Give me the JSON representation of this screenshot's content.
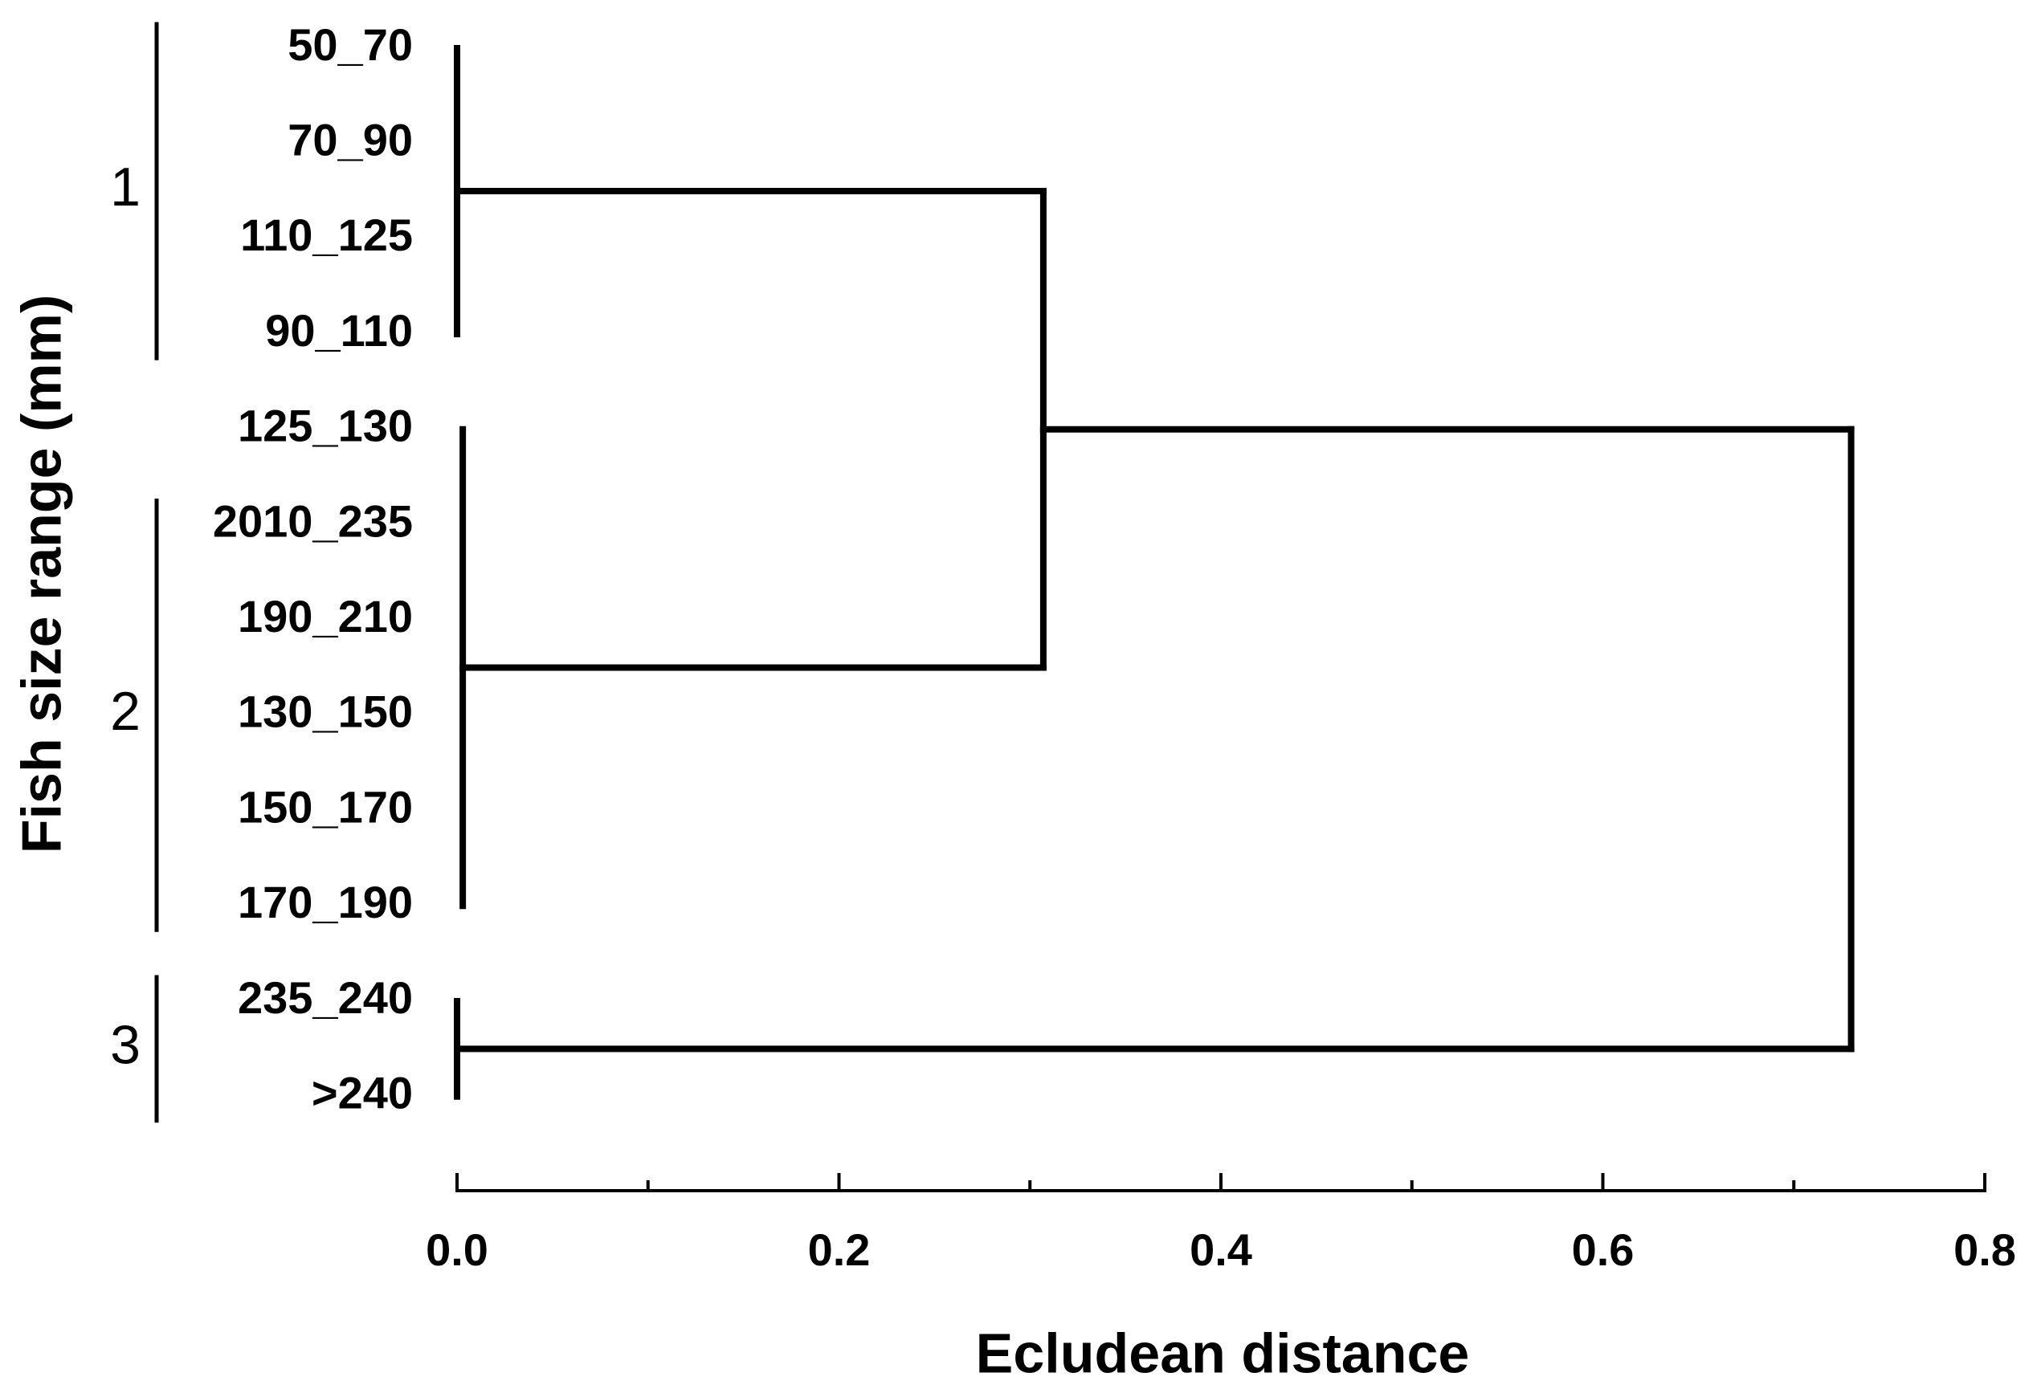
{
  "chart_data": {
    "type": "dendrogram",
    "xlabel": "Ecludean distance",
    "ylabel": "Fish size range (mm)",
    "leaves": [
      "50_70",
      "70_90",
      "110_125",
      "90_110",
      "125_130",
      "2010_235",
      "190_210",
      "130_150",
      "150_170",
      "170_190",
      "235_240",
      ">240"
    ],
    "merges": [
      {
        "children": [
          0,
          1,
          2,
          3
        ],
        "height": 0
      },
      {
        "children": [
          4,
          5,
          6,
          7,
          8,
          9
        ],
        "height": 0.003
      },
      {
        "children": [
          10,
          11
        ],
        "height": 0
      },
      {
        "children": [
          12,
          13
        ],
        "height": 0.307
      },
      {
        "children": [
          15,
          14
        ],
        "height": 0.73
      }
    ],
    "groups": [
      {
        "label": "1",
        "leaves": [
          0,
          3
        ]
      },
      {
        "label": "2",
        "leaves": [
          5,
          9
        ]
      },
      {
        "label": "3",
        "leaves": [
          10,
          11
        ]
      }
    ],
    "xlim": [
      0,
      0.8
    ],
    "xticks": [
      {
        "value": 0,
        "label": "0.0"
      },
      0.2,
      0.4,
      0.6,
      0.8
    ],
    "xminorticks": [
      0.1,
      0.3,
      0.5,
      0.7
    ],
    "color": "#000000"
  }
}
